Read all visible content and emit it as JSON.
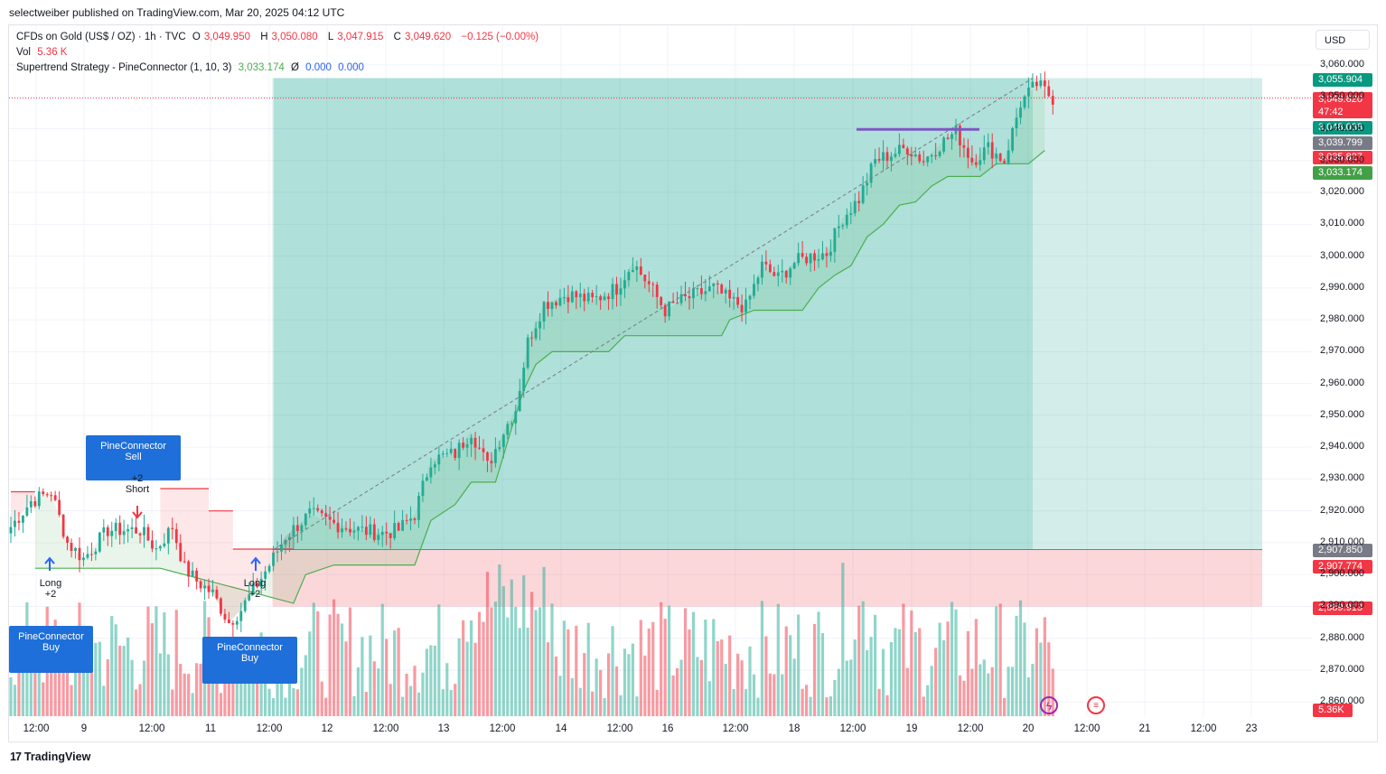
{
  "publisher_line": "selectweiber published on TradingView.com, Mar 20, 2025 04:12 UTC",
  "legend": {
    "symbol": "CFDs on Gold (US$ / OZ) · 1h · TVC",
    "o_label": "O",
    "o_value": "3,049.950",
    "h_label": "H",
    "h_value": "3,050.080",
    "l_label": "L",
    "l_value": "3,047.915",
    "c_label": "C",
    "c_value": "3,049.620",
    "change": "−0.125 (−0.00%)",
    "vol_label": "Vol",
    "vol_value": "5.36 K",
    "indicator": "Supertrend Strategy - PineConnector (1, 10, 3)",
    "indicator_value": "3,033.174",
    "indicator_symbol": "Ø",
    "indicator_v2": "0.000",
    "indicator_v3": "0.000"
  },
  "currency": "USD",
  "branding": "TradingView",
  "colors": {
    "up": "#22ab94",
    "down": "#f23645",
    "supertrend_up": "#4caf50",
    "supertrend_down": "#f23645",
    "profit_zone": "#22ab94",
    "loss_zone": "#f23645",
    "tag_blue": "#1e6fd9",
    "resistance_line": "#7e57c2"
  },
  "signals": [
    {
      "id": "buy1-label",
      "text": [
        "PineConnector",
        "Buy"
      ],
      "kind": "buy"
    },
    {
      "id": "long1",
      "text": [
        "Long",
        "+2"
      ]
    },
    {
      "id": "sell-label",
      "text": [
        "PineConnector",
        "Sell"
      ],
      "kind": "sell"
    },
    {
      "id": "short1",
      "text": [
        "+2",
        "Short"
      ]
    },
    {
      "id": "buy2-label",
      "text": [
        "PineConnector",
        "Buy"
      ],
      "kind": "buy"
    },
    {
      "id": "long2",
      "text": [
        "Long",
        "+2"
      ]
    }
  ],
  "price_badges": [
    {
      "value": "3,055.904",
      "color": "#089981",
      "price": 3055.904
    },
    {
      "value": "3,049.620",
      "sub": "47:42",
      "color": "#f23645",
      "price": 3049.62
    },
    {
      "value": "3,048.038",
      "color": "#089981",
      "price": 3048.038
    },
    {
      "value": "3,039.799",
      "color": "#787b86",
      "price": 3039.799
    },
    {
      "value": "3,035.827",
      "color": "#f23645",
      "price": 3035.827
    },
    {
      "value": "3,033.174",
      "color": "#43a047",
      "price": 3033.174
    },
    {
      "value": "2,907.850",
      "color": "#787b86",
      "price": 2907.85
    },
    {
      "value": "2,907.774",
      "color": "#f23645",
      "price": 2907.774
    },
    {
      "value": "2,889.913",
      "color": "#f23645",
      "price": 2889.913
    }
  ],
  "volume_badge": "5.36K",
  "chart_data": {
    "type": "candlestick",
    "symbol": "CFDs on Gold (US$ / OZ)",
    "interval": "1h",
    "currency": "USD",
    "y_axis": {
      "ticks": [
        3060,
        3050,
        3040,
        3030,
        3020,
        3010,
        3000,
        2990,
        2980,
        2970,
        2960,
        2950,
        2940,
        2930,
        2920,
        2910,
        2900,
        2890,
        2880,
        2870,
        2860
      ],
      "tick_labels": [
        "3,060.000",
        "3,050.000",
        "3,040.000",
        "3,030.000",
        "3,020.000",
        "3,010.000",
        "3,000.000",
        "2,990.000",
        "2,980.000",
        "2,970.000",
        "2,960.000",
        "2,950.000",
        "2,940.000",
        "2,930.000",
        "2,920.000",
        "2,910.000",
        "2,900.000",
        "2,890.000",
        "2,880.000",
        "2,870.000",
        "2,860.000"
      ],
      "ylim": [
        2857,
        3063
      ]
    },
    "x_axis": {
      "tick_labels": [
        "12:00",
        "9",
        "12:00",
        "11",
        "12:00",
        "12",
        "12:00",
        "13",
        "12:00",
        "14",
        "12:00",
        "16",
        "12:00",
        "18",
        "12:00",
        "19",
        "12:00",
        "20",
        "12:00",
        "21",
        "12:00",
        "23"
      ]
    },
    "price_path": [
      {
        "bar": 0,
        "price": 2915
      },
      {
        "bar": 5,
        "price": 2923
      },
      {
        "bar": 10,
        "price": 2926
      },
      {
        "bar": 14,
        "price": 2910
      },
      {
        "bar": 18,
        "price": 2905
      },
      {
        "bar": 24,
        "price": 2914
      },
      {
        "bar": 32,
        "price": 2914
      },
      {
        "bar": 36,
        "price": 2908
      },
      {
        "bar": 40,
        "price": 2915
      },
      {
        "bar": 43,
        "price": 2902
      },
      {
        "bar": 46,
        "price": 2898
      },
      {
        "bar": 50,
        "price": 2894
      },
      {
        "bar": 54,
        "price": 2885
      },
      {
        "bar": 57,
        "price": 2889
      },
      {
        "bar": 61,
        "price": 2897
      },
      {
        "bar": 64,
        "price": 2903
      },
      {
        "bar": 68,
        "price": 2912
      },
      {
        "bar": 74,
        "price": 2919
      },
      {
        "bar": 80,
        "price": 2916
      },
      {
        "bar": 86,
        "price": 2914
      },
      {
        "bar": 92,
        "price": 2913
      },
      {
        "bar": 96,
        "price": 2914
      },
      {
        "bar": 100,
        "price": 2919
      },
      {
        "bar": 104,
        "price": 2936
      },
      {
        "bar": 110,
        "price": 2938
      },
      {
        "bar": 114,
        "price": 2945
      },
      {
        "bar": 118,
        "price": 2934
      },
      {
        "bar": 122,
        "price": 2945
      },
      {
        "bar": 125,
        "price": 2952
      },
      {
        "bar": 128,
        "price": 2973
      },
      {
        "bar": 132,
        "price": 2985
      },
      {
        "bar": 138,
        "price": 2988
      },
      {
        "bar": 144,
        "price": 2986
      },
      {
        "bar": 150,
        "price": 2990
      },
      {
        "bar": 154,
        "price": 2998
      },
      {
        "bar": 158,
        "price": 2991
      },
      {
        "bar": 162,
        "price": 2983
      },
      {
        "bar": 166,
        "price": 2986
      },
      {
        "bar": 170,
        "price": 2988
      },
      {
        "bar": 174,
        "price": 2990
      },
      {
        "bar": 178,
        "price": 2986
      },
      {
        "bar": 182,
        "price": 2984
      },
      {
        "bar": 186,
        "price": 2997
      },
      {
        "bar": 190,
        "price": 2993
      },
      {
        "bar": 194,
        "price": 2998
      },
      {
        "bar": 198,
        "price": 3000
      },
      {
        "bar": 202,
        "price": 3001
      },
      {
        "bar": 206,
        "price": 3012
      },
      {
        "bar": 210,
        "price": 3018
      },
      {
        "bar": 214,
        "price": 3030
      },
      {
        "bar": 218,
        "price": 3032
      },
      {
        "bar": 222,
        "price": 3034
      },
      {
        "bar": 226,
        "price": 3030
      },
      {
        "bar": 230,
        "price": 3035
      },
      {
        "bar": 234,
        "price": 3039
      },
      {
        "bar": 238,
        "price": 3030
      },
      {
        "bar": 242,
        "price": 3034
      },
      {
        "bar": 246,
        "price": 3030
      },
      {
        "bar": 250,
        "price": 3048
      },
      {
        "bar": 254,
        "price": 3054
      },
      {
        "bar": 258,
        "price": 3049.62
      }
    ],
    "supertrend_down_segments": [
      {
        "from_bar": 0,
        "to_bar": 6,
        "price": 2926
      },
      {
        "from_bar": 37,
        "to_bar": 49,
        "price": 2927
      },
      {
        "from_bar": 49,
        "to_bar": 55,
        "price": 2920
      },
      {
        "from_bar": 55,
        "to_bar": 70,
        "price": 2908
      }
    ],
    "supertrend_up_path": [
      {
        "bar": 6,
        "price": 2902
      },
      {
        "bar": 37,
        "price": 2902
      },
      {
        "bar": 70,
        "price": 2891
      },
      {
        "bar": 73,
        "price": 2900
      },
      {
        "bar": 80,
        "price": 2903
      },
      {
        "bar": 100,
        "price": 2903
      },
      {
        "bar": 104,
        "price": 2917
      },
      {
        "bar": 110,
        "price": 2922
      },
      {
        "bar": 114,
        "price": 2929
      },
      {
        "bar": 120,
        "price": 2929
      },
      {
        "bar": 124,
        "price": 2946
      },
      {
        "bar": 127,
        "price": 2958
      },
      {
        "bar": 130,
        "price": 2966
      },
      {
        "bar": 134,
        "price": 2970
      },
      {
        "bar": 148,
        "price": 2970
      },
      {
        "bar": 152,
        "price": 2975
      },
      {
        "bar": 176,
        "price": 2975
      },
      {
        "bar": 178,
        "price": 2980
      },
      {
        "bar": 184,
        "price": 2983
      },
      {
        "bar": 196,
        "price": 2983
      },
      {
        "bar": 200,
        "price": 2990
      },
      {
        "bar": 204,
        "price": 2994
      },
      {
        "bar": 208,
        "price": 2997
      },
      {
        "bar": 212,
        "price": 3006
      },
      {
        "bar": 216,
        "price": 3010
      },
      {
        "bar": 220,
        "price": 3016
      },
      {
        "bar": 224,
        "price": 3017
      },
      {
        "bar": 228,
        "price": 3022
      },
      {
        "bar": 232,
        "price": 3025
      },
      {
        "bar": 240,
        "price": 3025
      },
      {
        "bar": 244,
        "price": 3029
      },
      {
        "bar": 252,
        "price": 3029
      },
      {
        "bar": 256,
        "price": 3033.174
      }
    ],
    "position": {
      "entry": 2907.85,
      "target": 3055.904,
      "stop": 2889.913,
      "entry_bar": 65
    },
    "resistance_level": 3039.8,
    "last_price": 3049.62,
    "current_volume": "5.36K"
  }
}
